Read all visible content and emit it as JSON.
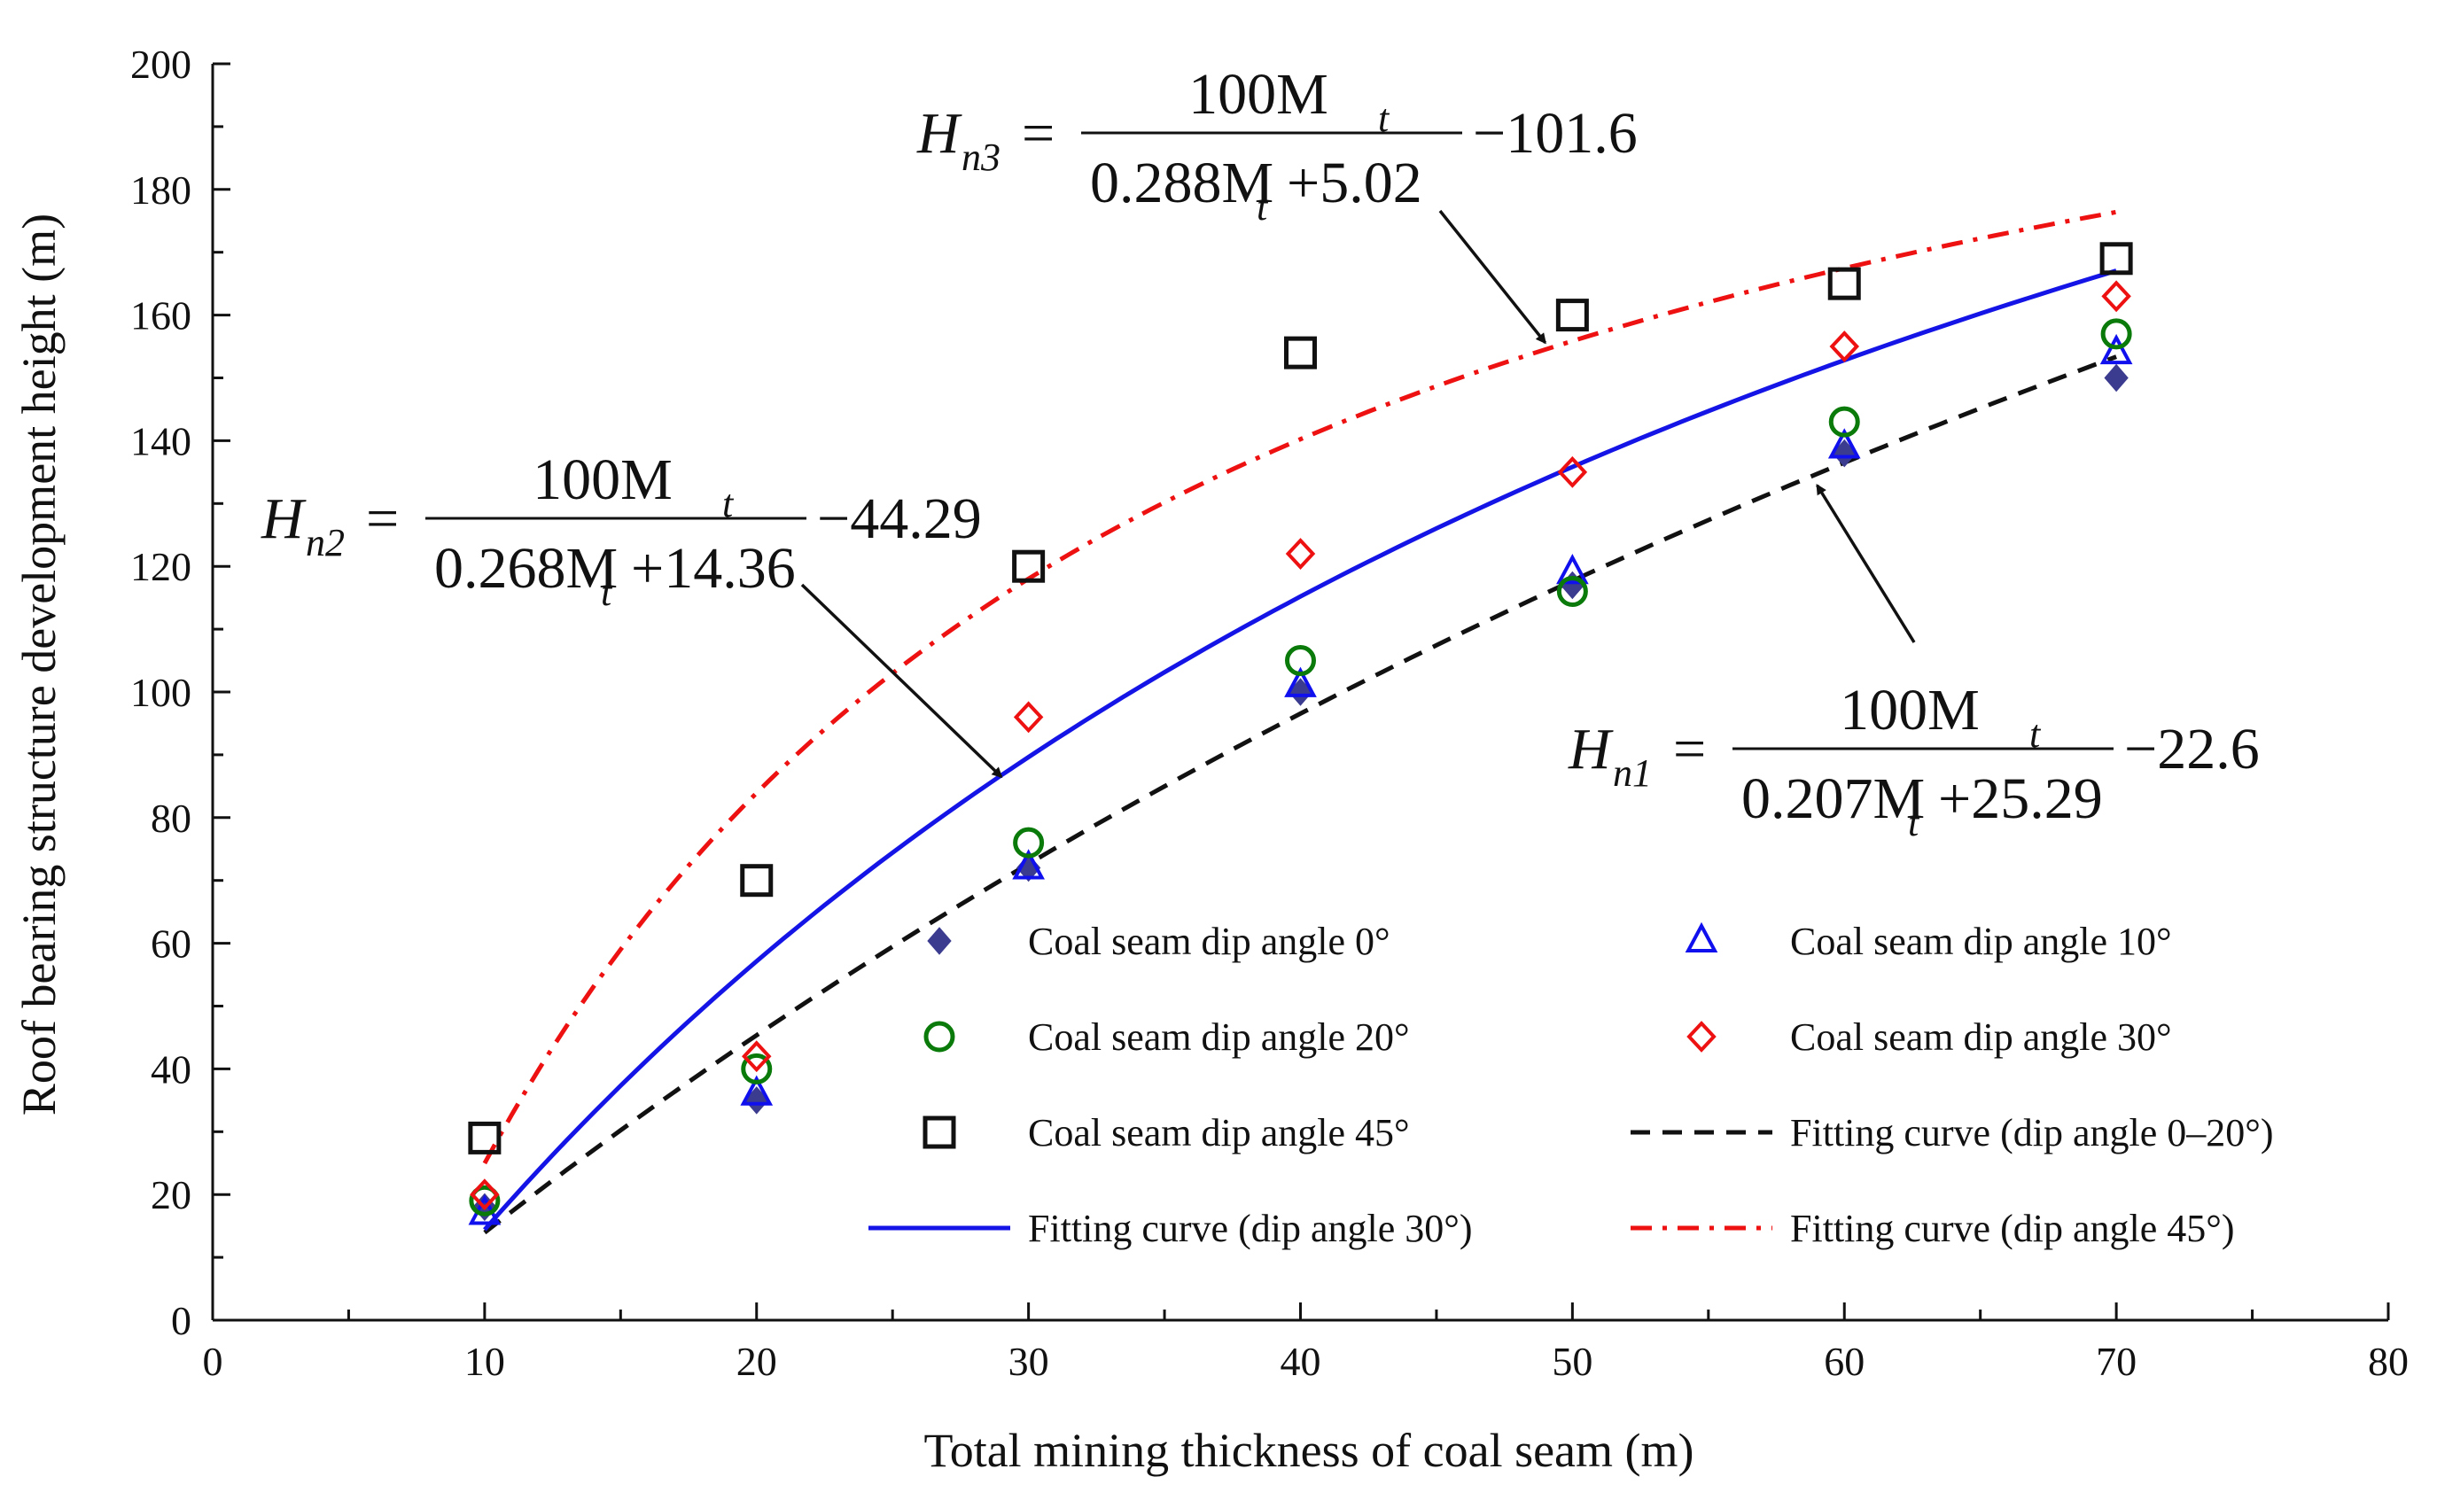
{
  "chart_data": {
    "type": "scatter",
    "xlabel": "Total mining thickness of coal seam (m)",
    "ylabel": "Roof bearing structure development height (m)",
    "xlim": [
      0,
      80
    ],
    "ylim": [
      0,
      200
    ],
    "xticks": [
      "0",
      "10",
      "20",
      "30",
      "40",
      "50",
      "60",
      "70",
      "80"
    ],
    "yticks": [
      "0",
      "20",
      "40",
      "60",
      "80",
      "100",
      "120",
      "140",
      "160",
      "180",
      "200"
    ],
    "grid": false,
    "legend_position": "bottom-right, inside plot, two columns",
    "series": [
      {
        "name": "Coal seam dip angle 0°",
        "kind": "marker",
        "marker": "diamond-filled",
        "color": "#3b3b8f",
        "x": [
          10,
          20,
          30,
          40,
          50,
          60,
          70
        ],
        "y": [
          18,
          35,
          72,
          100,
          117,
          138,
          150
        ]
      },
      {
        "name": "Coal seam dip angle 10°",
        "kind": "marker",
        "marker": "triangle-open",
        "color": "#1010ee",
        "x": [
          10,
          20,
          30,
          40,
          50,
          60,
          70
        ],
        "y": [
          17,
          36,
          72,
          101,
          119,
          139,
          154
        ]
      },
      {
        "name": "Coal seam dip angle 20°",
        "kind": "marker",
        "marker": "circle-open",
        "color": "#0a7a0a",
        "x": [
          10,
          20,
          30,
          40,
          50,
          60,
          70
        ],
        "y": [
          19,
          40,
          76,
          105,
          116,
          143,
          157
        ]
      },
      {
        "name": "Coal seam dip angle 30°",
        "kind": "marker",
        "marker": "diamond-open",
        "color": "#ee1111",
        "x": [
          10,
          20,
          30,
          40,
          50,
          60,
          70
        ],
        "y": [
          20,
          42,
          96,
          122,
          135,
          155,
          163
        ]
      },
      {
        "name": "Coal seam dip angle 45°",
        "kind": "marker",
        "marker": "square-open",
        "color": "#111111",
        "x": [
          10,
          20,
          30,
          40,
          50,
          60,
          70
        ],
        "y": [
          29,
          70,
          120,
          154,
          160,
          165,
          169
        ]
      },
      {
        "name": "Fitting curve (dip angle 0–20°)",
        "kind": "curve",
        "dash": "dashed",
        "color": "#111111",
        "formula": {
          "a": 0.207,
          "b": 25.29,
          "c": 22.6
        },
        "xrange": [
          10,
          70
        ]
      },
      {
        "name": "Fitting curve (dip angle 30°)",
        "kind": "curve",
        "dash": "solid",
        "color": "#1414e6",
        "formula": {
          "a": 0.268,
          "b": 14.36,
          "c": 44.29
        },
        "xrange": [
          10,
          70
        ]
      },
      {
        "name": "Fitting curve (dip angle 45°)",
        "kind": "curve",
        "dash": "dashdot",
        "color": "#ee1111",
        "formula": {
          "a": 0.288,
          "b": 5.02,
          "c": 101.6
        },
        "xrange": [
          10,
          70
        ]
      }
    ],
    "annotations": [
      {
        "H": "H",
        "sub": "n3",
        "num": "100M",
        "num_sub": "t",
        "den_coef": "0.288M",
        "den_sub": "t",
        "den_rest": "+5.02",
        "tail": "−101.6",
        "arrow_to": {
          "x": 49,
          "y": 155.6
        }
      },
      {
        "H": "H",
        "sub": "n2",
        "num": "100M",
        "num_sub": "t",
        "den_coef": "0.268M",
        "den_sub": "t",
        "den_rest": "+14.36",
        "tail": "−44.29",
        "arrow_to": {
          "x": 29,
          "y": 86.5
        }
      },
      {
        "H": "H",
        "sub": "n1",
        "num": "100M",
        "num_sub": "t",
        "den_coef": "0.207M",
        "den_sub": "t",
        "den_rest": "+25.29",
        "tail": "−22.6",
        "arrow_to": {
          "x": 59,
          "y": 132.9
        }
      }
    ]
  }
}
